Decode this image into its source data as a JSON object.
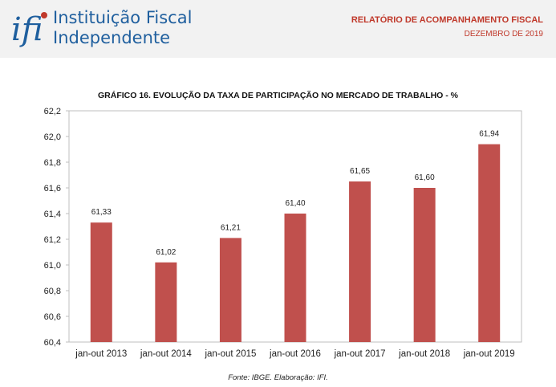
{
  "header": {
    "logo_line1": "Instituição Fiscal",
    "logo_line2": "Independente",
    "logo_mark_text": "ifi",
    "report_title": "RELATÓRIO DE ACOMPANHAMENTO FISCAL",
    "report_date": "DEZEMBRO DE 2019",
    "brand_color": "#1f5f9e",
    "accent_color": "#c0392b"
  },
  "chart_data": {
    "type": "bar",
    "title": "GRÁFICO 16. EVOLUÇÃO DA TAXA DE PARTICIPAÇÃO NO MERCADO DE TRABALHO - %",
    "categories": [
      "jan-out 2013",
      "jan-out 2014",
      "jan-out 2015",
      "jan-out 2016",
      "jan-out 2017",
      "jan-out 2018",
      "jan-out 2019"
    ],
    "values": [
      61.33,
      61.02,
      61.21,
      61.4,
      61.65,
      61.6,
      61.94
    ],
    "data_labels": [
      "61,33",
      "61,02",
      "61,21",
      "61,40",
      "61,65",
      "61,60",
      "61,94"
    ],
    "ylim": [
      60.4,
      62.2
    ],
    "yticks": [
      60.4,
      60.6,
      60.8,
      61.0,
      61.2,
      61.4,
      61.6,
      61.8,
      62.0,
      62.2
    ],
    "ytick_labels": [
      "60,4",
      "60,6",
      "60,8",
      "61,0",
      "61,2",
      "61,4",
      "61,6",
      "61,8",
      "62,0",
      "62,2"
    ],
    "bar_color": "#c0504d",
    "grid": false,
    "legend": "none"
  },
  "source": "Fonte: IBGE. Elaboração: IFI."
}
